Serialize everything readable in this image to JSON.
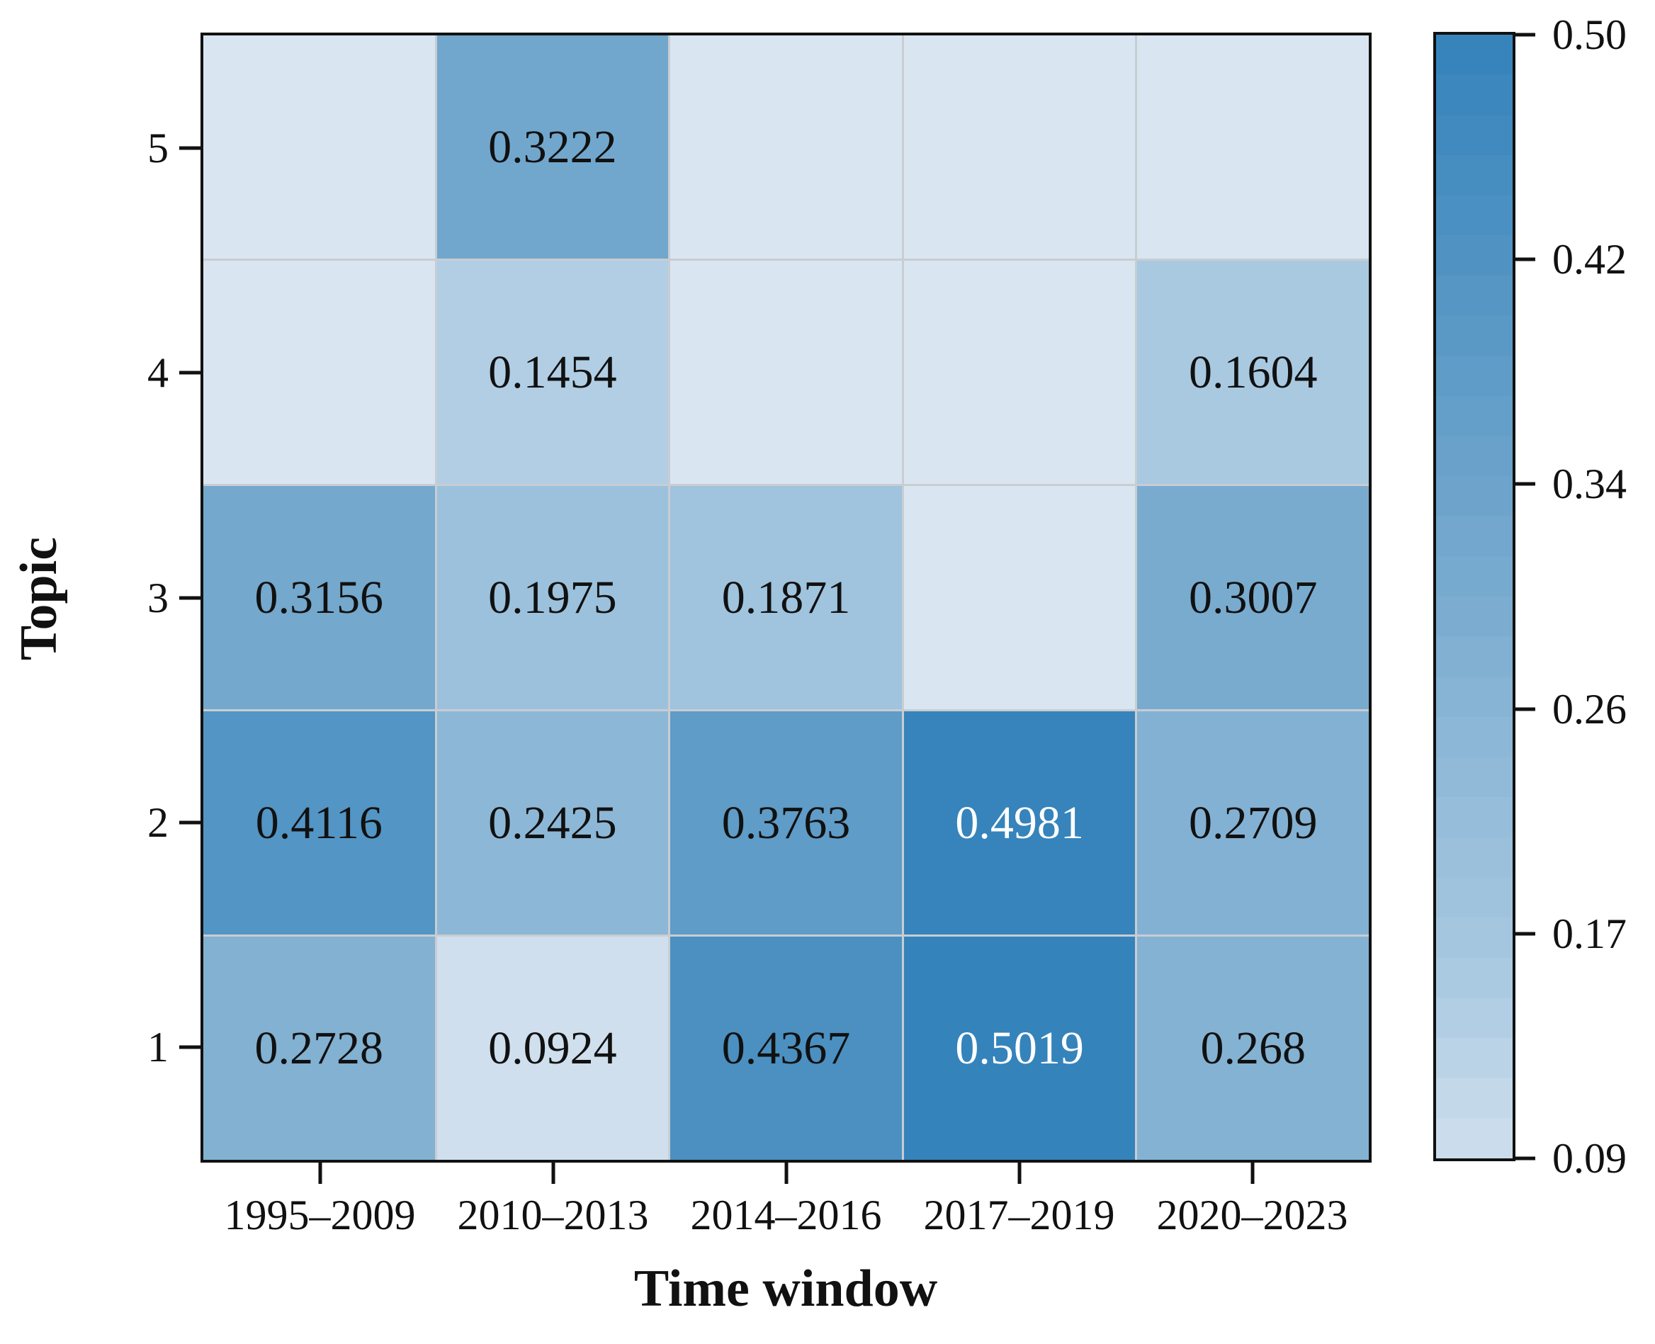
{
  "chart_data": {
    "type": "heatmap",
    "title": "",
    "xlabel": "Time window",
    "ylabel": "Topic",
    "x_categories": [
      "1995–2009",
      "2010–2013",
      "2014–2016",
      "2017–2019",
      "2020–2023"
    ],
    "y_categories": [
      "5",
      "4",
      "3",
      "2",
      "1"
    ],
    "values": [
      [
        null,
        0.3222,
        null,
        null,
        null
      ],
      [
        null,
        0.1454,
        null,
        null,
        0.1604
      ],
      [
        0.3156,
        0.1975,
        0.1871,
        null,
        0.3007
      ],
      [
        0.4116,
        0.2425,
        0.3763,
        0.4981,
        0.2709
      ],
      [
        0.2728,
        0.0924,
        0.4367,
        0.5019,
        0.268
      ]
    ],
    "cell_labels": [
      [
        "",
        "0.3222",
        "",
        "",
        ""
      ],
      [
        "",
        "0.1454",
        "",
        "",
        "0.1604"
      ],
      [
        "0.3156",
        "0.1975",
        "0.1871",
        "",
        "0.3007"
      ],
      [
        "0.4116",
        "0.2425",
        "0.3763",
        "0.4981",
        "0.2709"
      ],
      [
        "0.2728",
        "0.0924",
        "0.4367",
        "0.5019",
        "0.268"
      ]
    ],
    "colorbar": {
      "tick_labels": [
        "0.50",
        "0.42",
        "0.34",
        "0.26",
        "0.17",
        "0.09"
      ],
      "vmin": 0.0924,
      "vmax": 0.5019
    },
    "colors": {
      "scale_anchors": [
        {
          "v": 0.0924,
          "c": "#cfdfed"
        },
        {
          "v": 0.16,
          "c": "#a9c9e1"
        },
        {
          "v": 0.3,
          "c": "#79abcf"
        },
        {
          "v": 0.5019,
          "c": "#3583bb"
        }
      ],
      "empty_cell": "#d9e6f1",
      "gridline": "#c8cdd2",
      "border": "#111111",
      "text_dark": "#111111",
      "text_light": "#ffffff"
    },
    "white_text_threshold": 0.45,
    "legend_position": "right",
    "grid": true
  }
}
